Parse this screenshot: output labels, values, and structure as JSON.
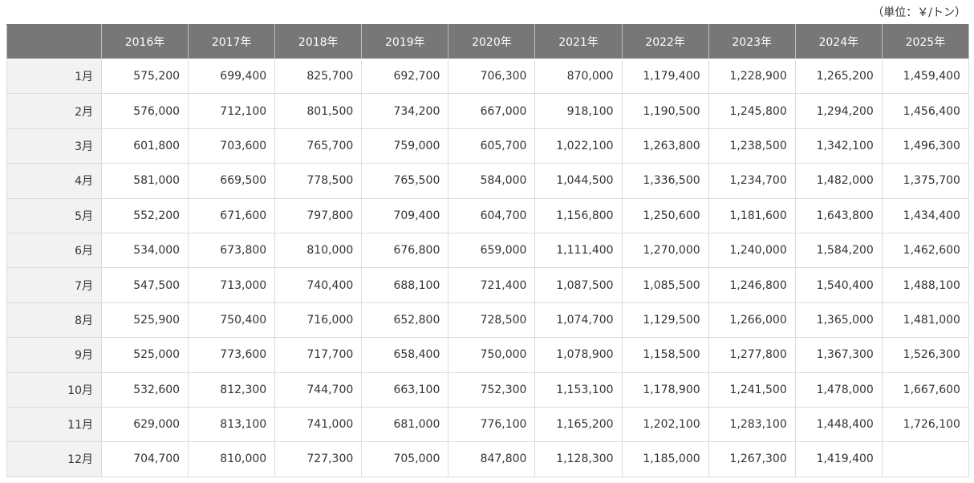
{
  "unit_note": "（単位：￥/トン）",
  "columns": [
    "2016年",
    "2017年",
    "2018年",
    "2019年",
    "2020年",
    "2021年",
    "2022年",
    "2023年",
    "2024年",
    "2025年"
  ],
  "rows": [
    {
      "month": "1月",
      "values": [
        "575,200",
        "699,400",
        "825,700",
        "692,700",
        "706,300",
        "870,000",
        "1,179,400",
        "1,228,900",
        "1,265,200",
        "1,459,400"
      ]
    },
    {
      "month": "2月",
      "values": [
        "576,000",
        "712,100",
        "801,500",
        "734,200",
        "667,000",
        "918,100",
        "1,190,500",
        "1,245,800",
        "1,294,200",
        "1,456,400"
      ]
    },
    {
      "month": "3月",
      "values": [
        "601,800",
        "703,600",
        "765,700",
        "759,000",
        "605,700",
        "1,022,100",
        "1,263,800",
        "1,238,500",
        "1,342,100",
        "1,496,300"
      ]
    },
    {
      "month": "4月",
      "values": [
        "581,000",
        "669,500",
        "778,500",
        "765,500",
        "584,000",
        "1,044,500",
        "1,336,500",
        "1,234,700",
        "1,482,000",
        "1,375,700"
      ]
    },
    {
      "month": "5月",
      "values": [
        "552,200",
        "671,600",
        "797,800",
        "709,400",
        "604,700",
        "1,156,800",
        "1,250,600",
        "1,181,600",
        "1,643,800",
        "1,434,400"
      ]
    },
    {
      "month": "6月",
      "values": [
        "534,000",
        "673,800",
        "810,000",
        "676,800",
        "659,000",
        "1,111,400",
        "1,270,000",
        "1,240,000",
        "1,584,200",
        "1,462,600"
      ]
    },
    {
      "month": "7月",
      "values": [
        "547,500",
        "713,000",
        "740,400",
        "688,100",
        "721,400",
        "1,087,500",
        "1,085,500",
        "1,246,800",
        "1,540,400",
        "1,488,100"
      ]
    },
    {
      "month": "8月",
      "values": [
        "525,900",
        "750,400",
        "716,000",
        "652,800",
        "728,500",
        "1,074,700",
        "1,129,500",
        "1,266,000",
        "1,365,000",
        "1,481,000"
      ]
    },
    {
      "month": "9月",
      "values": [
        "525,000",
        "773,600",
        "717,700",
        "658,400",
        "750,000",
        "1,078,900",
        "1,158,500",
        "1,277,800",
        "1,367,300",
        "1,526,300"
      ]
    },
    {
      "month": "10月",
      "values": [
        "532,600",
        "812,300",
        "744,700",
        "663,100",
        "752,300",
        "1,153,100",
        "1,178,900",
        "1,241,500",
        "1,478,000",
        "1,667,600"
      ]
    },
    {
      "month": "11月",
      "values": [
        "629,000",
        "813,100",
        "741,000",
        "681,000",
        "776,100",
        "1,165,200",
        "1,202,100",
        "1,283,100",
        "1,448,400",
        "1,726,100"
      ]
    },
    {
      "month": "12月",
      "values": [
        "704,700",
        "810,000",
        "727,300",
        "705,000",
        "847,800",
        "1,128,300",
        "1,185,000",
        "1,267,300",
        "1,419,400",
        ""
      ]
    }
  ]
}
